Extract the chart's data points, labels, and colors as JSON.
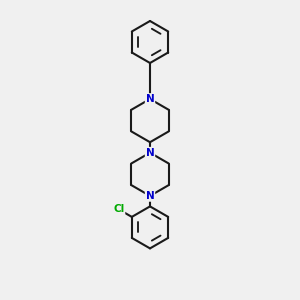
{
  "background_color": "#f0f0f0",
  "bond_color": "#1a1a1a",
  "nitrogen_color": "#0000cc",
  "chlorine_color": "#00aa00",
  "line_width": 1.5,
  "fig_width": 3.0,
  "fig_height": 3.0,
  "dpi": 100,
  "xlim": [
    0.2,
    0.8
  ],
  "ylim": [
    0.0,
    1.0
  ]
}
